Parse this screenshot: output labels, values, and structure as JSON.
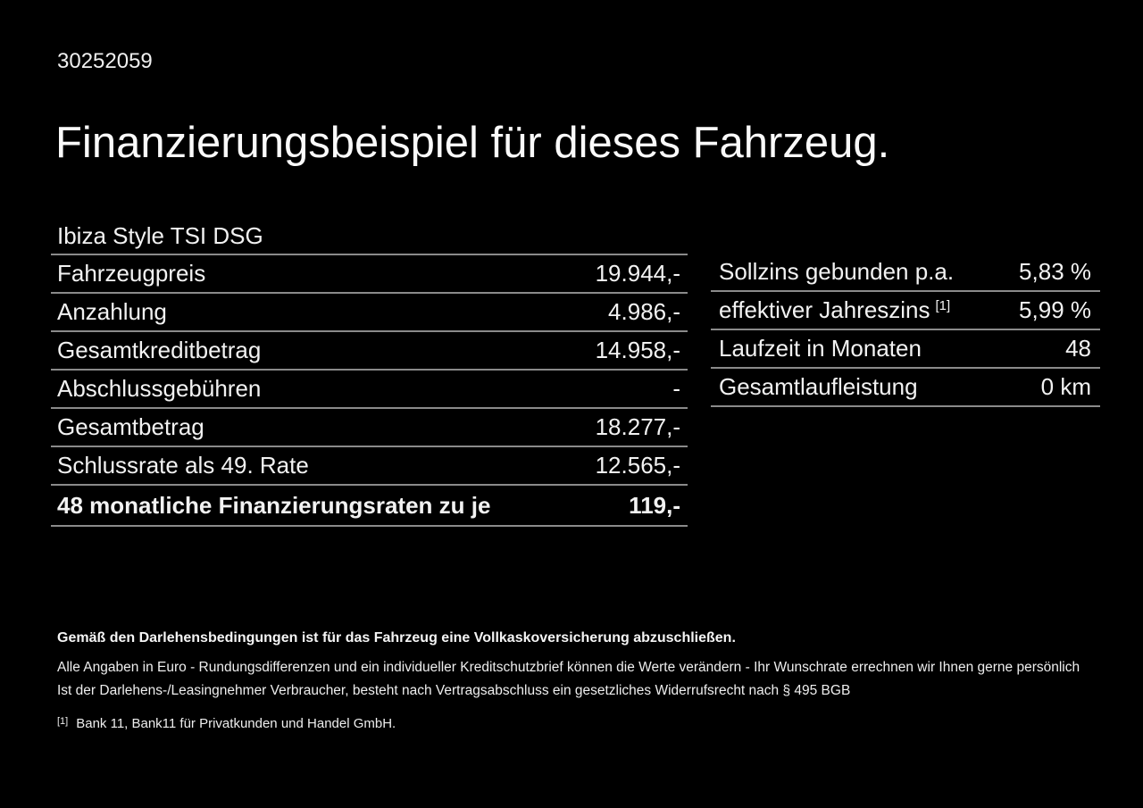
{
  "page": {
    "background_color": "#000000",
    "text_color": "#f2f2f2",
    "divider_color": "#8a8a8a"
  },
  "header": {
    "document_id": "30252059",
    "title": "Finanzierungsbeispiel für dieses Fahrzeug."
  },
  "vehicle": {
    "model": "Ibiza Style TSI DSG"
  },
  "finance_table": {
    "rows": [
      {
        "label": "Fahrzeugpreis",
        "value": "19.944,-"
      },
      {
        "label": "Anzahlung",
        "value": "4.986,-"
      },
      {
        "label": "Gesamtkreditbetrag",
        "value": "14.958,-"
      },
      {
        "label": "Abschlussgebühren",
        "value": "-"
      },
      {
        "label": "Gesamtbetrag",
        "value": "18.277,-"
      },
      {
        "label": "Schlussrate als 49. Rate",
        "value": "12.565,-"
      },
      {
        "label": "48 monatliche Finanzierungsraten zu je",
        "value": "119,-"
      }
    ]
  },
  "conditions_table": {
    "rows": [
      {
        "label": "Sollzins gebunden p.a.",
        "superscript": "",
        "value": "5,83 %"
      },
      {
        "label": "effektiver Jahreszins",
        "superscript": "[1]",
        "value": "5,99 %"
      },
      {
        "label": "Laufzeit in Monaten",
        "superscript": "",
        "value": "48"
      },
      {
        "label": "Gesamtlaufleistung",
        "superscript": "",
        "value": "0 km"
      }
    ]
  },
  "footnotes": {
    "insurance_note": "Gemäß den Darlehensbedingungen ist für das Fahrzeug eine Vollkaskoversicherung abzuschließen.",
    "disclaimer_line1": "Alle Angaben in Euro - Rundungsdifferenzen und ein individueller Kreditschutzbrief können die Werte verändern - Ihr Wunschrate errechnen wir Ihnen gerne persönlich",
    "disclaimer_line2": "Ist der Darlehens-/Leasingnehmer Verbraucher, besteht nach Vertragsabschluss ein gesetzliches Widerrufsrecht nach § 495 BGB",
    "bank_reference_marker": "[1]",
    "bank_reference": "Bank 11, Bank11 für Privatkunden und Handel GmbH."
  }
}
